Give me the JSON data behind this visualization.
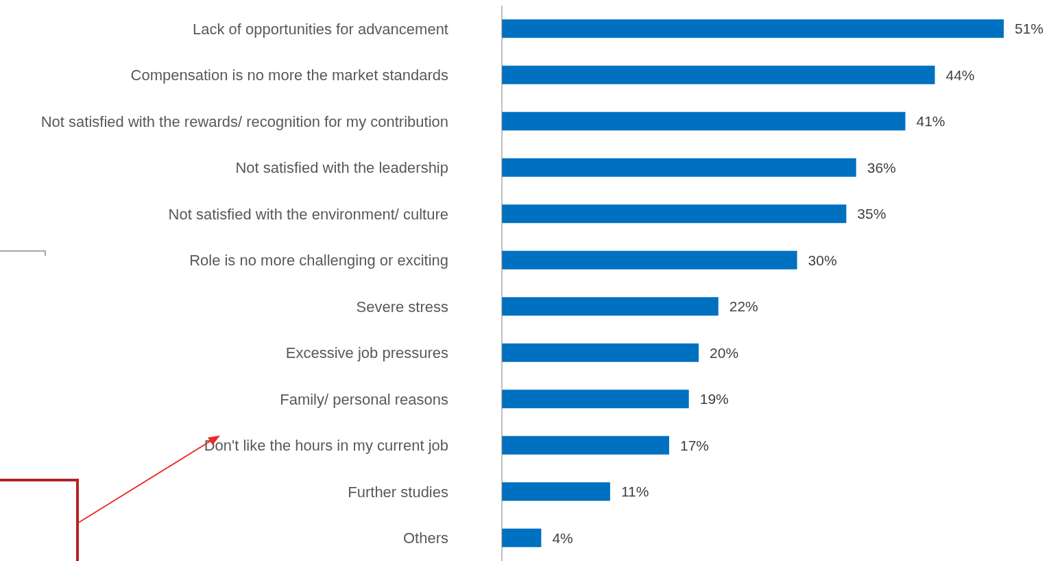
{
  "chart_data": {
    "type": "bar",
    "orientation": "horizontal",
    "categories": [
      "Lack of opportunities for advancement",
      "Compensation is no more the market standards",
      "Not satisfied with the rewards/ recognition for my contribution",
      "Not satisfied with the leadership",
      "Not satisfied with the environment/ culture",
      "Role is no more challenging or exciting",
      "Severe stress",
      "Excessive job pressures",
      "Family/ personal reasons",
      "Don't like the hours in my current job",
      "Further studies",
      "Others"
    ],
    "values": [
      51,
      44,
      41,
      36,
      35,
      30,
      22,
      20,
      19,
      17,
      11,
      4
    ],
    "value_labels": [
      "51%",
      "44%",
      "41%",
      "36%",
      "35%",
      "30%",
      "22%",
      "20%",
      "19%",
      "17%",
      "11%",
      "4%"
    ],
    "color": "#0070c0",
    "grid": false,
    "legend": false
  }
}
